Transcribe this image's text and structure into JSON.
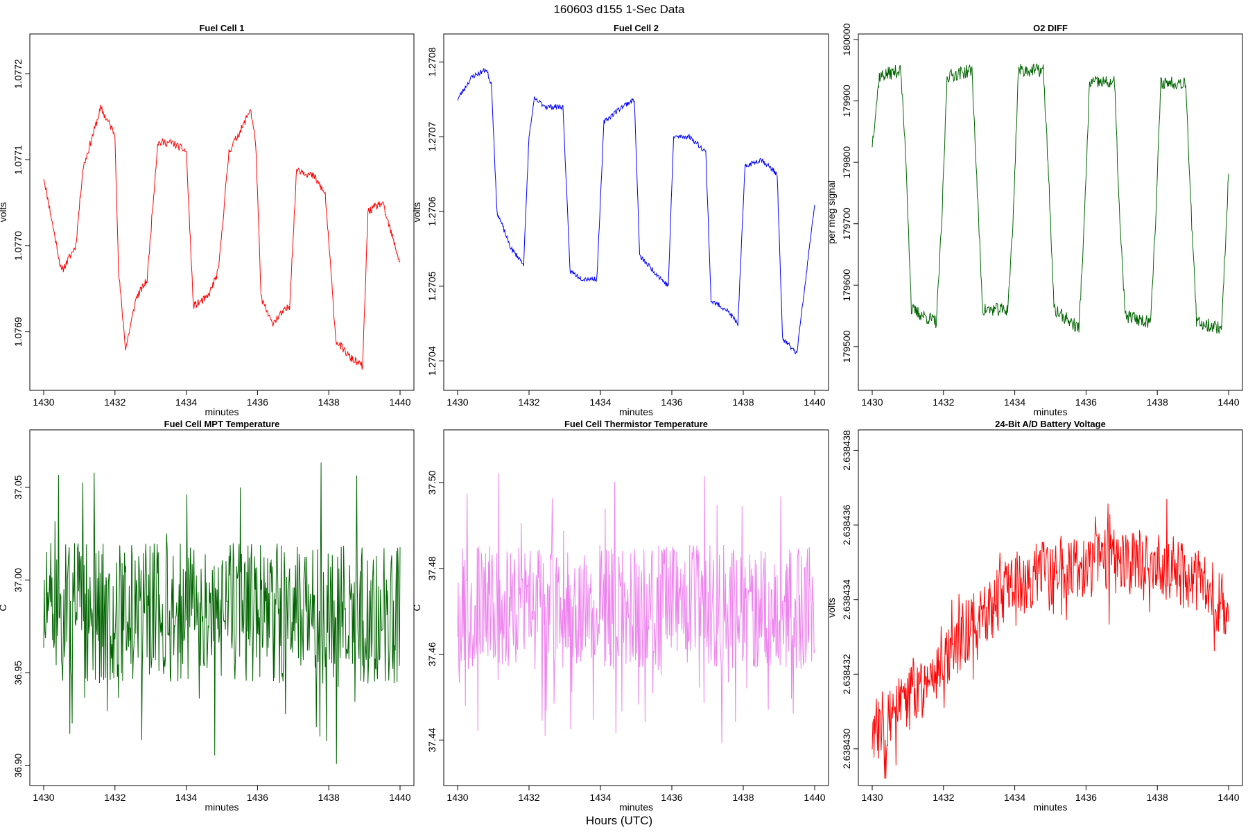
{
  "figure": {
    "title": "160603   d155   1-Sec Data",
    "bottom_label": "Hours (UTC)"
  },
  "chart_data": [
    {
      "type": "line",
      "title": "Fuel Cell 1",
      "xlabel": "minutes",
      "ylabel": "volts",
      "color": "#ff0000",
      "xlim": [
        1430,
        1440
      ],
      "ylim": [
        1.07684,
        1.07724
      ],
      "xticks": [
        1430,
        1432,
        1434,
        1436,
        1438,
        1440
      ],
      "yticks": [
        1.0769,
        1.077,
        1.0771,
        1.0772
      ],
      "yticklabels": [
        "1.0769",
        "1.0770",
        "1.0771",
        "1.0772"
      ],
      "x": [
        1430.0,
        1430.5,
        1430.9,
        1431.1,
        1431.6,
        1432.0,
        1432.1,
        1432.3,
        1432.6,
        1432.9,
        1433.2,
        1433.6,
        1434.0,
        1434.2,
        1434.6,
        1434.9,
        1435.2,
        1435.6,
        1435.8,
        1435.95,
        1436.1,
        1436.4,
        1436.9,
        1437.1,
        1437.6,
        1437.9,
        1438.2,
        1438.6,
        1438.95,
        1439.1,
        1439.5,
        1440.0
      ],
      "values": [
        1.07708,
        1.07697,
        1.077,
        1.07709,
        1.07716,
        1.07713,
        1.07697,
        1.07688,
        1.07694,
        1.07696,
        1.07712,
        1.07712,
        1.07711,
        1.07693,
        1.07694,
        1.07697,
        1.07711,
        1.07714,
        1.07716,
        1.07712,
        1.07694,
        1.07691,
        1.07693,
        1.07709,
        1.07708,
        1.07706,
        1.07689,
        1.07687,
        1.07686,
        1.07704,
        1.07705,
        1.07698
      ],
      "noise": 4.5e-06,
      "seed": 11
    },
    {
      "type": "line",
      "title": "Fuel Cell 2",
      "xlabel": "minutes",
      "ylabel": "volts",
      "color": "#0000ff",
      "xlim": [
        1430,
        1440
      ],
      "ylim": [
        1.27037,
        1.27083
      ],
      "xticks": [
        1430,
        1432,
        1434,
        1436,
        1438,
        1440
      ],
      "yticks": [
        1.2704,
        1.2705,
        1.2706,
        1.2707,
        1.2708
      ],
      "yticklabels": [
        "1.2704",
        "1.2705",
        "1.2706",
        "1.2707",
        "1.2708"
      ],
      "x": [
        1430.0,
        1430.4,
        1430.8,
        1430.95,
        1431.1,
        1431.5,
        1431.85,
        1432.0,
        1432.15,
        1432.5,
        1432.95,
        1433.15,
        1433.5,
        1433.9,
        1434.1,
        1434.6,
        1434.95,
        1435.1,
        1435.5,
        1435.9,
        1436.05,
        1436.5,
        1436.95,
        1437.1,
        1437.5,
        1437.85,
        1438.05,
        1438.5,
        1438.95,
        1439.1,
        1439.5,
        1440.0
      ],
      "values": [
        1.27075,
        1.27078,
        1.27079,
        1.27077,
        1.2706,
        1.27055,
        1.27053,
        1.2707,
        1.27075,
        1.27074,
        1.27074,
        1.27052,
        1.27051,
        1.27051,
        1.27072,
        1.27074,
        1.27075,
        1.27054,
        1.27052,
        1.2705,
        1.2707,
        1.2707,
        1.27068,
        1.27048,
        1.27047,
        1.27045,
        1.27066,
        1.27067,
        1.27065,
        1.27043,
        1.27041,
        1.27061
      ],
      "noise": 3.5e-06,
      "seed": 23
    },
    {
      "type": "line",
      "title": "O2 DIFF",
      "xlabel": "minutes",
      "ylabel": "per meg signal",
      "color": "#006400",
      "xlim": [
        1430,
        1440
      ],
      "ylim": [
        179440,
        180000
      ],
      "xticks": [
        1430,
        1432,
        1434,
        1436,
        1438,
        1440
      ],
      "yticks": [
        179500,
        179600,
        179700,
        179800,
        179900,
        180000
      ],
      "yticklabels": [
        "179500",
        "179600",
        "179700",
        "179800",
        "179900",
        "180000"
      ],
      "x": [
        1430.0,
        1430.2,
        1430.8,
        1430.95,
        1431.1,
        1431.8,
        1431.95,
        1432.1,
        1432.8,
        1432.95,
        1433.1,
        1433.8,
        1433.95,
        1434.1,
        1434.8,
        1434.95,
        1435.1,
        1435.8,
        1435.95,
        1436.1,
        1436.8,
        1436.95,
        1437.1,
        1437.8,
        1437.95,
        1438.1,
        1438.8,
        1438.95,
        1439.1,
        1439.8,
        1440.0
      ],
      "values": [
        179830,
        179940,
        179950,
        179800,
        179560,
        179540,
        179700,
        179940,
        179950,
        179750,
        179560,
        179560,
        179700,
        179950,
        179950,
        179780,
        179560,
        179530,
        179700,
        179930,
        179930,
        179700,
        179550,
        179540,
        179700,
        179930,
        179930,
        179720,
        179540,
        179530,
        179780
      ],
      "noise": 11,
      "seed": 37
    },
    {
      "type": "line",
      "title": "Fuel Cell MPT Temperature",
      "xlabel": "minutes",
      "ylabel": "C",
      "color": "#006400",
      "xlim": [
        1430,
        1440
      ],
      "ylim": [
        36.893,
        37.078
      ],
      "xticks": [
        1430,
        1432,
        1434,
        1436,
        1438,
        1440
      ],
      "yticks": [
        36.9,
        36.95,
        37.0,
        37.05
      ],
      "yticklabels": [
        "36.90",
        "36.95",
        "37.00",
        "37.05"
      ],
      "x": [
        1430.0,
        1440.0
      ],
      "values": [
        36.982,
        36.982
      ],
      "noise": 0.038,
      "seed": 51,
      "spiky": true
    },
    {
      "type": "line",
      "title": "Fuel Cell Thermistor Temperature",
      "xlabel": "minutes",
      "ylabel": "C",
      "color": "#ee82ee",
      "xlim": [
        1430,
        1440
      ],
      "ylim": [
        37.431,
        37.511
      ],
      "xticks": [
        1430,
        1432,
        1434,
        1436,
        1438,
        1440
      ],
      "yticks": [
        37.44,
        37.46,
        37.48,
        37.5
      ],
      "yticklabels": [
        "37.44",
        "37.46",
        "37.48",
        "37.50"
      ],
      "x": [
        1430.0,
        1440.0
      ],
      "values": [
        37.471,
        37.471
      ],
      "noise": 0.0145,
      "seed": 67,
      "spiky": true
    },
    {
      "type": "line",
      "title": "24-Bit A/D Battery Voltage",
      "xlabel": "minutes",
      "ylabel": "volts",
      "color": "#ff0000",
      "xlim": [
        1430,
        1440
      ],
      "ylim": [
        2.6384292,
        2.6384384
      ],
      "xticks": [
        1430,
        1432,
        1434,
        1436,
        1438,
        1440
      ],
      "yticks": [
        2.63843,
        2.638432,
        2.638434,
        2.638436,
        2.638438
      ],
      "yticklabels": [
        "2.638430",
        "2.638432",
        "2.638434",
        "2.638436",
        "2.638438"
      ],
      "x": [
        1430.0,
        1430.5,
        1431.0,
        1431.5,
        1432.0,
        1432.5,
        1433.0,
        1433.5,
        1434.0,
        1434.5,
        1435.0,
        1435.5,
        1436.0,
        1436.5,
        1437.0,
        1437.5,
        1438.0,
        1438.5,
        1439.0,
        1439.5,
        1440.0
      ],
      "values": [
        2.6384304,
        2.6384309,
        2.6384313,
        2.6384318,
        2.6384325,
        2.638433,
        2.6384334,
        2.638434,
        2.6384344,
        2.6384346,
        2.6384347,
        2.6384349,
        2.6384349,
        2.638435,
        2.638435,
        2.638435,
        2.6384349,
        2.6384348,
        2.6384345,
        2.6384342,
        2.6384337
      ],
      "noise": 9e-07,
      "seed": 83,
      "spiky": true
    }
  ]
}
